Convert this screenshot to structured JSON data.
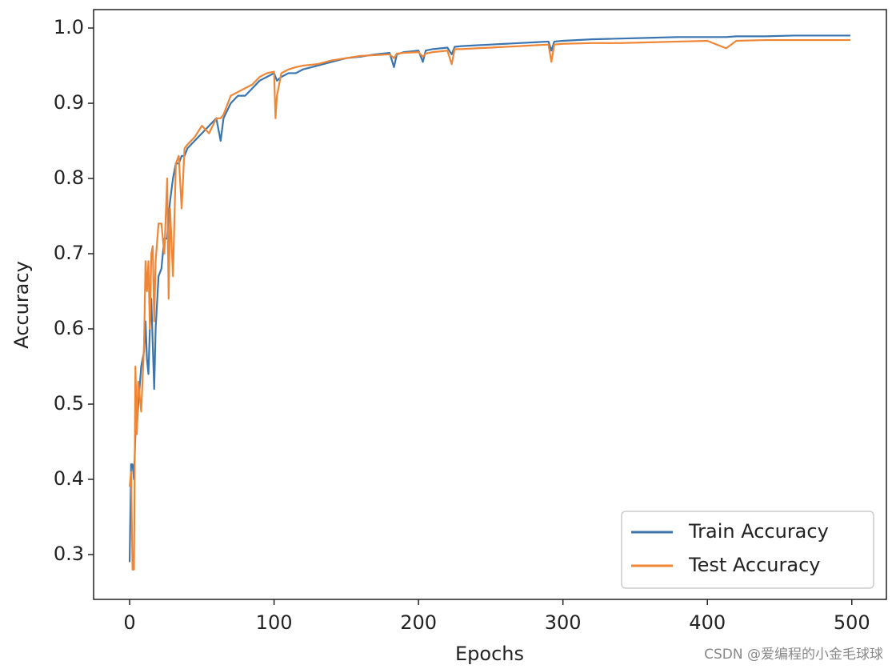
{
  "chart_data": {
    "type": "line",
    "x_label": "Epochs",
    "y_label": "Accuracy",
    "x": [
      0,
      1,
      2,
      3,
      4,
      5,
      6,
      8,
      10,
      11,
      12,
      13,
      14,
      15,
      16,
      17,
      18,
      20,
      22,
      24,
      26,
      27,
      28,
      30,
      32,
      34,
      36,
      38,
      40,
      45,
      50,
      55,
      60,
      63,
      65,
      70,
      75,
      80,
      85,
      90,
      95,
      100,
      101,
      102,
      105,
      110,
      115,
      120,
      130,
      140,
      150,
      160,
      170,
      180,
      183,
      185,
      190,
      200,
      203,
      205,
      210,
      220,
      223,
      225,
      230,
      240,
      250,
      260,
      270,
      280,
      290,
      292,
      294,
      300,
      320,
      340,
      360,
      380,
      400,
      413,
      420,
      440,
      460,
      480,
      499
    ],
    "series": [
      {
        "name": "Train Accuracy",
        "color": "#3b75af",
        "values": [
          0.29,
          0.42,
          0.42,
          0.4,
          0.46,
          0.47,
          0.5,
          0.55,
          0.57,
          0.61,
          0.56,
          0.54,
          0.6,
          0.64,
          0.58,
          0.52,
          0.6,
          0.67,
          0.68,
          0.72,
          0.72,
          0.75,
          0.77,
          0.8,
          0.82,
          0.82,
          0.83,
          0.83,
          0.84,
          0.85,
          0.86,
          0.87,
          0.88,
          0.85,
          0.88,
          0.9,
          0.91,
          0.91,
          0.92,
          0.93,
          0.935,
          0.94,
          0.935,
          0.93,
          0.935,
          0.94,
          0.94,
          0.945,
          0.95,
          0.955,
          0.96,
          0.962,
          0.965,
          0.967,
          0.948,
          0.965,
          0.968,
          0.97,
          0.955,
          0.97,
          0.972,
          0.974,
          0.965,
          0.975,
          0.976,
          0.977,
          0.978,
          0.979,
          0.98,
          0.981,
          0.982,
          0.97,
          0.982,
          0.983,
          0.985,
          0.986,
          0.987,
          0.988,
          0.988,
          0.988,
          0.989,
          0.989,
          0.99,
          0.99,
          0.99
        ]
      },
      {
        "name": "Test Accuracy",
        "color": "#ef8636",
        "values": [
          0.39,
          0.41,
          0.28,
          0.28,
          0.55,
          0.46,
          0.53,
          0.49,
          0.58,
          0.69,
          0.65,
          0.69,
          0.6,
          0.7,
          0.71,
          0.61,
          0.69,
          0.74,
          0.74,
          0.7,
          0.8,
          0.64,
          0.76,
          0.67,
          0.82,
          0.83,
          0.76,
          0.84,
          0.845,
          0.855,
          0.87,
          0.86,
          0.88,
          0.88,
          0.885,
          0.91,
          0.915,
          0.92,
          0.925,
          0.935,
          0.94,
          0.942,
          0.88,
          0.91,
          0.94,
          0.945,
          0.948,
          0.95,
          0.952,
          0.957,
          0.96,
          0.963,
          0.964,
          0.965,
          0.96,
          0.966,
          0.967,
          0.968,
          0.962,
          0.966,
          0.968,
          0.97,
          0.952,
          0.972,
          0.972,
          0.973,
          0.974,
          0.975,
          0.976,
          0.977,
          0.978,
          0.955,
          0.978,
          0.979,
          0.98,
          0.98,
          0.981,
          0.982,
          0.983,
          0.973,
          0.983,
          0.984,
          0.984,
          0.984,
          0.984
        ]
      }
    ],
    "xlim": [
      -24.95,
      523.95
    ],
    "ylim": [
      0.2404,
      1.0245
    ],
    "xticks": [
      0,
      100,
      200,
      300,
      400,
      500
    ],
    "yticks": [
      0.3,
      0.4,
      0.5,
      0.6,
      0.7,
      0.8,
      0.9,
      {
        "value": 1.0,
        "label": "1.0"
      }
    ],
    "legend": "lower right",
    "grid": false,
    "watermark": "CSDN @爱编程的小金毛球球"
  }
}
